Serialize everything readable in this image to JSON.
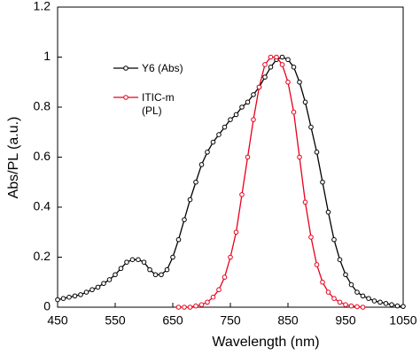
{
  "chart_data": {
    "type": "line",
    "xlabel": "Wavelength (nm)",
    "ylabel": "Abs/PL (a.u.)",
    "xlim": [
      450,
      1050
    ],
    "xticks": [
      450,
      550,
      650,
      750,
      850,
      950,
      1050
    ],
    "ylim": [
      0,
      1.2
    ],
    "yticks": [
      0,
      0.2,
      0.4,
      0.6,
      0.8,
      1,
      1.2
    ],
    "series": [
      {
        "name": "Y6 (Abs)",
        "color": "#000000",
        "x": [
          450,
          460,
          470,
          480,
          490,
          500,
          510,
          520,
          530,
          540,
          550,
          560,
          570,
          580,
          590,
          600,
          610,
          620,
          630,
          640,
          650,
          660,
          670,
          680,
          690,
          700,
          710,
          720,
          730,
          740,
          750,
          760,
          770,
          780,
          790,
          800,
          810,
          820,
          830,
          840,
          850,
          860,
          870,
          880,
          890,
          900,
          910,
          920,
          930,
          940,
          950,
          960,
          970,
          980,
          990,
          1000,
          1010,
          1020,
          1030,
          1040,
          1050
        ],
        "values": [
          0.03,
          0.035,
          0.04,
          0.045,
          0.05,
          0.06,
          0.07,
          0.08,
          0.095,
          0.11,
          0.13,
          0.155,
          0.18,
          0.19,
          0.19,
          0.18,
          0.15,
          0.13,
          0.13,
          0.15,
          0.2,
          0.27,
          0.35,
          0.43,
          0.5,
          0.57,
          0.62,
          0.66,
          0.69,
          0.72,
          0.75,
          0.77,
          0.8,
          0.82,
          0.85,
          0.88,
          0.92,
          0.96,
          0.99,
          1.0,
          0.99,
          0.96,
          0.9,
          0.82,
          0.72,
          0.62,
          0.5,
          0.38,
          0.27,
          0.19,
          0.13,
          0.09,
          0.06,
          0.045,
          0.035,
          0.025,
          0.02,
          0.015,
          0.01,
          0.005,
          0.003
        ]
      },
      {
        "name": "ITIC-m (PL)",
        "color": "#e8001c",
        "x": [
          660,
          670,
          680,
          690,
          700,
          710,
          720,
          730,
          740,
          750,
          760,
          770,
          780,
          790,
          800,
          810,
          820,
          830,
          840,
          850,
          860,
          870,
          880,
          890,
          900,
          910,
          920,
          930,
          940,
          950,
          960,
          970,
          980
        ],
        "values": [
          0,
          0,
          0,
          0.005,
          0.01,
          0.02,
          0.04,
          0.07,
          0.12,
          0.2,
          0.3,
          0.45,
          0.6,
          0.75,
          0.88,
          0.97,
          1.0,
          1.0,
          0.97,
          0.9,
          0.78,
          0.6,
          0.42,
          0.28,
          0.17,
          0.1,
          0.06,
          0.035,
          0.02,
          0.01,
          0.005,
          0.002,
          0
        ]
      }
    ]
  }
}
